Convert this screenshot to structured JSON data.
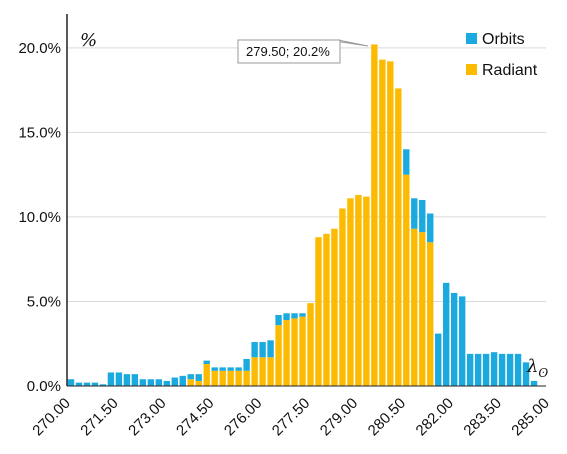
{
  "chart_data": {
    "type": "bar",
    "stacked": true,
    "title": "",
    "ylabel": "%",
    "xlabel": "λ",
    "xlabel_subscript": "ʘ",
    "ylim": [
      0,
      22
    ],
    "xlim": [
      270,
      285
    ],
    "bin_width": 0.25,
    "grid": "horizontal",
    "legend_position": "top-right",
    "y_ticks": [
      "0.0%",
      "5.0%",
      "10.0%",
      "15.0%",
      "20.0%"
    ],
    "y_tick_values": [
      0,
      5,
      10,
      15,
      20
    ],
    "x_ticks": [
      "270.00",
      "271.50",
      "273.00",
      "274.50",
      "276.00",
      "277.50",
      "279.00",
      "280.50",
      "282.00",
      "283.50",
      "285.00"
    ],
    "x_tick_values": [
      270,
      271.5,
      273,
      274.5,
      276,
      277.5,
      279,
      280.5,
      282,
      283.5,
      285
    ],
    "annotation": {
      "text": "279.50; 20.2%",
      "x": 279.625,
      "y": 20.2
    },
    "series": [
      {
        "name": "Orbits",
        "color": "#1aaadf",
        "x": [
          270.125,
          270.375,
          270.625,
          270.875,
          271.125,
          271.375,
          271.625,
          271.875,
          272.125,
          272.375,
          272.625,
          272.875,
          273.125,
          273.375,
          273.625,
          273.875,
          274.125,
          274.375,
          274.625,
          274.875,
          275.125,
          275.375,
          275.625,
          275.875,
          276.125,
          276.375,
          276.625,
          276.875,
          277.125,
          277.375,
          277.625,
          277.875,
          278.125,
          278.375,
          278.625,
          278.875,
          279.125,
          279.375,
          279.625,
          279.875,
          280.125,
          280.375,
          280.625,
          280.875,
          281.125,
          281.375,
          281.625,
          281.875,
          282.125,
          282.375,
          282.625,
          282.875,
          283.125,
          283.375,
          283.625,
          283.875,
          284.125,
          284.375,
          284.625,
          284.875
        ],
        "values": [
          0.4,
          0.2,
          0.2,
          0.2,
          0.1,
          0.8,
          0.8,
          0.7,
          0.7,
          0.4,
          0.4,
          0.4,
          0.3,
          0.5,
          0.6,
          0.3,
          0.4,
          0.2,
          0.2,
          0.2,
          0.2,
          0.2,
          0.7,
          0.9,
          0.9,
          1.0,
          0.6,
          0.4,
          0.3,
          0.2,
          0.0,
          0.0,
          0.0,
          0.0,
          0.0,
          0.0,
          0.0,
          0.0,
          0.0,
          0.0,
          0.0,
          0.0,
          1.5,
          1.8,
          1.9,
          1.7,
          3.1,
          6.1,
          5.5,
          5.3,
          1.9,
          1.9,
          1.9,
          2.0,
          1.9,
          1.9,
          1.9,
          1.4,
          0.3,
          0.0
        ]
      },
      {
        "name": "Radiant",
        "color": "#fcbb00",
        "x": [
          270.125,
          270.375,
          270.625,
          270.875,
          271.125,
          271.375,
          271.625,
          271.875,
          272.125,
          272.375,
          272.625,
          272.875,
          273.125,
          273.375,
          273.625,
          273.875,
          274.125,
          274.375,
          274.625,
          274.875,
          275.125,
          275.375,
          275.625,
          275.875,
          276.125,
          276.375,
          276.625,
          276.875,
          277.125,
          277.375,
          277.625,
          277.875,
          278.125,
          278.375,
          278.625,
          278.875,
          279.125,
          279.375,
          279.625,
          279.875,
          280.125,
          280.375,
          280.625,
          280.875,
          281.125,
          281.375,
          281.625,
          281.875,
          282.125,
          282.375,
          282.625,
          282.875,
          283.125,
          283.375,
          283.625,
          283.875,
          284.125,
          284.375,
          284.625,
          284.875
        ],
        "values": [
          0.0,
          0.0,
          0.0,
          0.0,
          0.0,
          0.0,
          0.0,
          0.0,
          0.0,
          0.0,
          0.0,
          0.0,
          0.0,
          0.0,
          0.0,
          0.4,
          0.3,
          1.3,
          0.9,
          0.9,
          0.9,
          0.9,
          0.9,
          1.7,
          1.7,
          1.7,
          3.6,
          3.9,
          4.0,
          4.1,
          4.9,
          8.8,
          9.0,
          9.3,
          10.5,
          11.1,
          11.3,
          11.2,
          20.2,
          19.3,
          19.2,
          17.6,
          12.5,
          9.3,
          9.1,
          8.5,
          0.0,
          0.0,
          0.0,
          0.0,
          0.0,
          0.0,
          0.0,
          0.0,
          0.0,
          0.0,
          0.0,
          0.0,
          0.0,
          0.0
        ]
      }
    ]
  }
}
